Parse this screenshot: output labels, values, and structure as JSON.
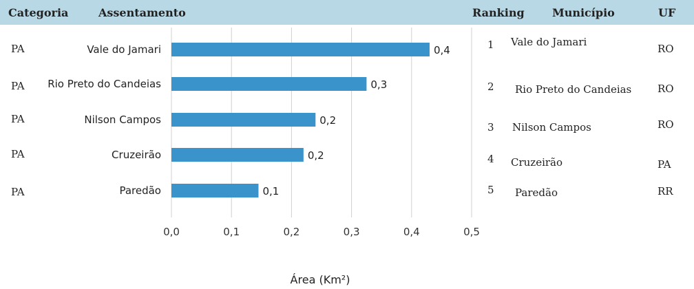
{
  "header": {
    "categoria": "Categoria",
    "assentamento": "Assentamento",
    "ranking": "Ranking",
    "municipio": "Município",
    "uf": "UF"
  },
  "rows": [
    {
      "categoria": "PA",
      "ranking": "1",
      "municipio": "Vale do Jamari",
      "uf": "RO"
    },
    {
      "categoria": "PA",
      "ranking": "2",
      "municipio": "Rio Preto do Candeias",
      "uf": "RO"
    },
    {
      "categoria": "PA",
      "ranking": "3",
      "municipio": "Nilson Campos",
      "uf": "RO"
    },
    {
      "categoria": "PA",
      "ranking": "4",
      "municipio": "Cruzeirão",
      "uf": "PA"
    },
    {
      "categoria": "PA",
      "ranking": "5",
      "municipio": "Paredão",
      "uf": "RR"
    }
  ],
  "chart_data": {
    "type": "bar",
    "orientation": "horizontal",
    "categories": [
      "Vale do Jamari",
      "Rio Preto do Candeias",
      "Nilson Campos",
      "Cruzeirão",
      "Paredão"
    ],
    "values": [
      0.43,
      0.325,
      0.24,
      0.22,
      0.145
    ],
    "data_labels": [
      "0,4",
      "0,3",
      "0,2",
      "0,2",
      "0,1"
    ],
    "xlabel": "Área (Km²)",
    "xlim": [
      0,
      0.5
    ],
    "xticks": [
      "0,0",
      "0,1",
      "0,2",
      "0,3",
      "0,4",
      "0,5"
    ],
    "grid": true,
    "bar_color": "#3b93cc"
  }
}
